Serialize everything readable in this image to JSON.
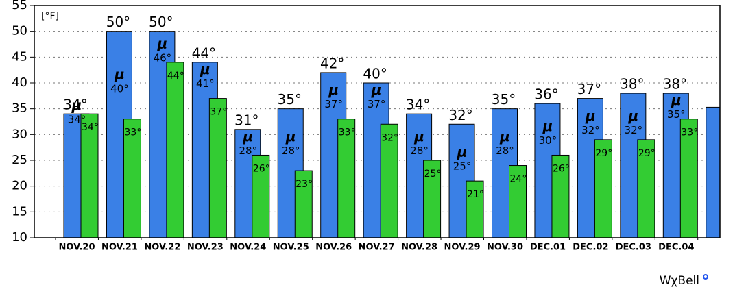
{
  "chart_data": {
    "type": "bar",
    "unit_label": "[°F]",
    "watermark": "WχBell",
    "categories": [
      "NOV.20",
      "NOV.21",
      "NOV.22",
      "NOV.23",
      "NOV.24",
      "NOV.25",
      "NOV.26",
      "NOV.27",
      "NOV.28",
      "NOV.29",
      "NOV.30",
      "DEC.01",
      "DEC.02",
      "DEC.03",
      "DEC.04",
      null
    ],
    "series": [
      {
        "color": "#3a80e6",
        "values": [
          34,
          50,
          50,
          44,
          31,
          35,
          42,
          40,
          34,
          32,
          35,
          36,
          37,
          38,
          38,
          35.3
        ],
        "value_labels": [
          "34°",
          "50°",
          "50°",
          "44°",
          "31°",
          "35°",
          "42°",
          "40°",
          "34°",
          "32°",
          "35°",
          "36°",
          "37°",
          "38°",
          "38°",
          null
        ]
      },
      {
        "color": "#33cc33",
        "values": [
          34,
          33,
          44,
          37,
          26,
          23,
          33,
          32,
          25,
          21,
          24,
          26,
          29,
          29,
          33,
          null
        ],
        "value_labels": [
          "34°",
          "33°",
          "44°",
          "37°",
          "26°",
          "23°",
          "33°",
          "32°",
          "25°",
          "21°",
          "24°",
          "26°",
          "29°",
          "29°",
          "33°",
          null
        ]
      }
    ],
    "mean": {
      "symbol": "μ",
      "values": [
        34,
        40,
        46,
        41,
        28,
        28,
        37,
        37,
        28,
        25,
        28,
        30,
        32,
        32,
        35,
        null
      ],
      "value_labels": [
        "34°",
        "40°",
        "46°",
        "41°",
        "28°",
        "28°",
        "37°",
        "37°",
        "28°",
        "25°",
        "28°",
        "30°",
        "32°",
        "32°",
        "35°",
        null
      ]
    },
    "ylim": [
      10,
      55
    ],
    "yticks": [
      10,
      15,
      20,
      25,
      30,
      35,
      40,
      45,
      50,
      55
    ],
    "grid": true
  }
}
